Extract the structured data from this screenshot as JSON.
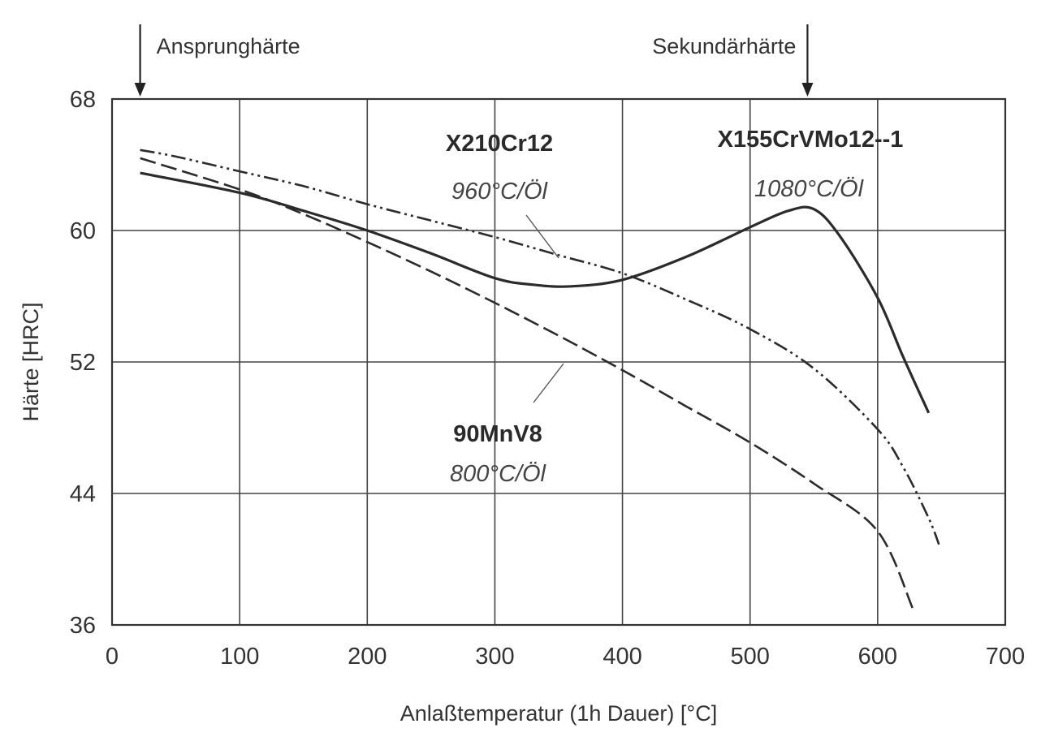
{
  "chart_data": {
    "type": "line",
    "xlabel": "Anlaßtemperatur (1h Dauer)  [°C]",
    "ylabel": "Härte [HRC]",
    "xlim": [
      0,
      700
    ],
    "ylim": [
      36,
      68
    ],
    "xticks": [
      0,
      100,
      200,
      300,
      400,
      500,
      600,
      700
    ],
    "yticks": [
      36,
      44,
      52,
      60,
      68
    ],
    "grid": true,
    "annotations": [
      {
        "text": "Ansprunghärte",
        "x": 22
      },
      {
        "text": "Sekundärhärte",
        "x": 545
      }
    ],
    "series": [
      {
        "name": "X210Cr12",
        "subtitle": "960°C/Öl",
        "style": "dash-dot-dot",
        "x": [
          22,
          50,
          100,
          150,
          200,
          250,
          300,
          350,
          400,
          450,
          500,
          550,
          600,
          620,
          640,
          648
        ],
        "y": [
          64.9,
          64.5,
          63.6,
          62.7,
          61.6,
          60.6,
          59.6,
          58.5,
          57.4,
          55.8,
          54.0,
          51.6,
          47.9,
          45.6,
          42.5,
          40.9
        ]
      },
      {
        "name": "X155CrVMo12--1",
        "subtitle": "1080°C/Öl",
        "style": "solid",
        "x": [
          22,
          100,
          150,
          200,
          250,
          300,
          330,
          360,
          400,
          450,
          500,
          530,
          550,
          570,
          600,
          620,
          640
        ],
        "y": [
          63.5,
          62.3,
          61.2,
          60.0,
          58.6,
          57.1,
          56.7,
          56.6,
          57.0,
          58.4,
          60.2,
          61.2,
          61.3,
          59.7,
          55.9,
          52.3,
          48.9
        ]
      },
      {
        "name": "90MnV8",
        "subtitle": "800°C/Öl",
        "style": "dashed",
        "x": [
          22,
          100,
          150,
          200,
          250,
          300,
          350,
          400,
          450,
          500,
          550,
          600,
          628
        ],
        "y": [
          64.4,
          62.5,
          61.0,
          59.3,
          57.5,
          55.6,
          53.6,
          51.5,
          49.3,
          47.1,
          44.6,
          41.7,
          36.9
        ]
      }
    ]
  }
}
